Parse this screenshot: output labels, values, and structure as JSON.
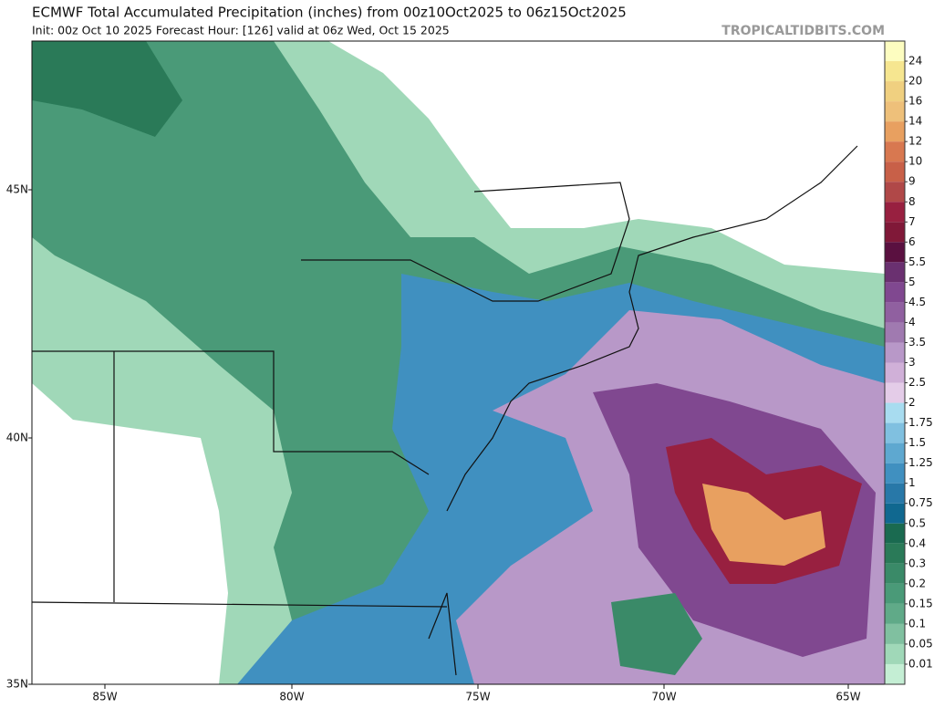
{
  "header": {
    "title": "ECMWF Total Accumulated Precipitation (inches) from 00z10Oct2025 to 06z15Oct2025",
    "subtitle": "Init: 00z Oct 10 2025   Forecast Hour: [126]   valid at 06z Wed, Oct 15 2025",
    "watermark": "TROPICALTIDBITS.COM"
  },
  "map": {
    "lat_labels": [
      "45N",
      "40N",
      "35N"
    ],
    "lon_labels": [
      "85W",
      "80W",
      "75W",
      "70W",
      "65W"
    ]
  },
  "colorbar": {
    "levels": [
      24,
      20,
      16,
      14,
      12,
      10,
      9,
      8,
      7,
      6,
      5.5,
      5,
      4.5,
      4,
      3.5,
      3,
      2.5,
      2,
      1.75,
      1.5,
      1.25,
      1,
      0.75,
      0.5,
      0.4,
      0.3,
      0.2,
      0.15,
      0.1,
      0.05,
      0.01
    ],
    "colors": [
      "#fdfdc0",
      "#f6e690",
      "#f0d080",
      "#eec07a",
      "#e8a060",
      "#d87850",
      "#c86048",
      "#b04848",
      "#982040",
      "#801838",
      "#5a1040",
      "#6a3070",
      "#804890",
      "#9060a0",
      "#a07ab0",
      "#b898c8",
      "#d0b0d8",
      "#e4cce8",
      "#a8dcf0",
      "#80c0e0",
      "#5ea8d0",
      "#4090c0",
      "#2878a8",
      "#106890",
      "#1a6a50",
      "#2a7a58",
      "#3a8a68",
      "#4a9a78",
      "#60aa88",
      "#80c0a0",
      "#a0d8b8",
      "#c4eed4"
    ]
  }
}
